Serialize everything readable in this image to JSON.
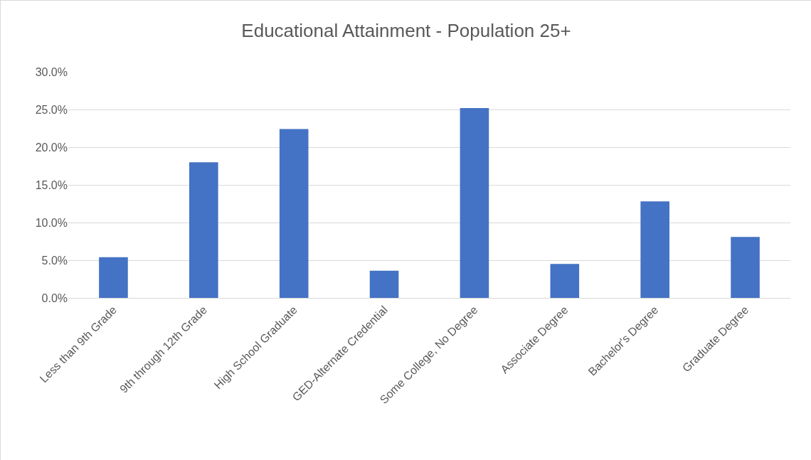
{
  "chart_data": {
    "type": "bar",
    "title": "Educational Attainment - Population 25+",
    "categories": [
      "Less than 9th Grade",
      "9th through 12th Grade",
      "High School Graduate",
      "GED-Alternate Credential",
      "Some College, No Degree",
      "Associate Degree",
      "Bachelor's Degree",
      "Graduate Degree"
    ],
    "values": [
      5.4,
      18.0,
      22.4,
      3.6,
      25.2,
      4.5,
      12.8,
      8.1
    ],
    "color": "#4472c4",
    "ylim": [
      0,
      30
    ],
    "yticks": [
      {
        "value": 0,
        "label": "0.0%"
      },
      {
        "value": 5,
        "label": "5.0%"
      },
      {
        "value": 10,
        "label": "10.0%"
      },
      {
        "value": 15,
        "label": "15.0%"
      },
      {
        "value": 20,
        "label": "20.0%"
      },
      {
        "value": 25,
        "label": "25.0%"
      },
      {
        "value": 30,
        "label": "30.0%"
      }
    ],
    "grid": "y",
    "legend": false
  }
}
